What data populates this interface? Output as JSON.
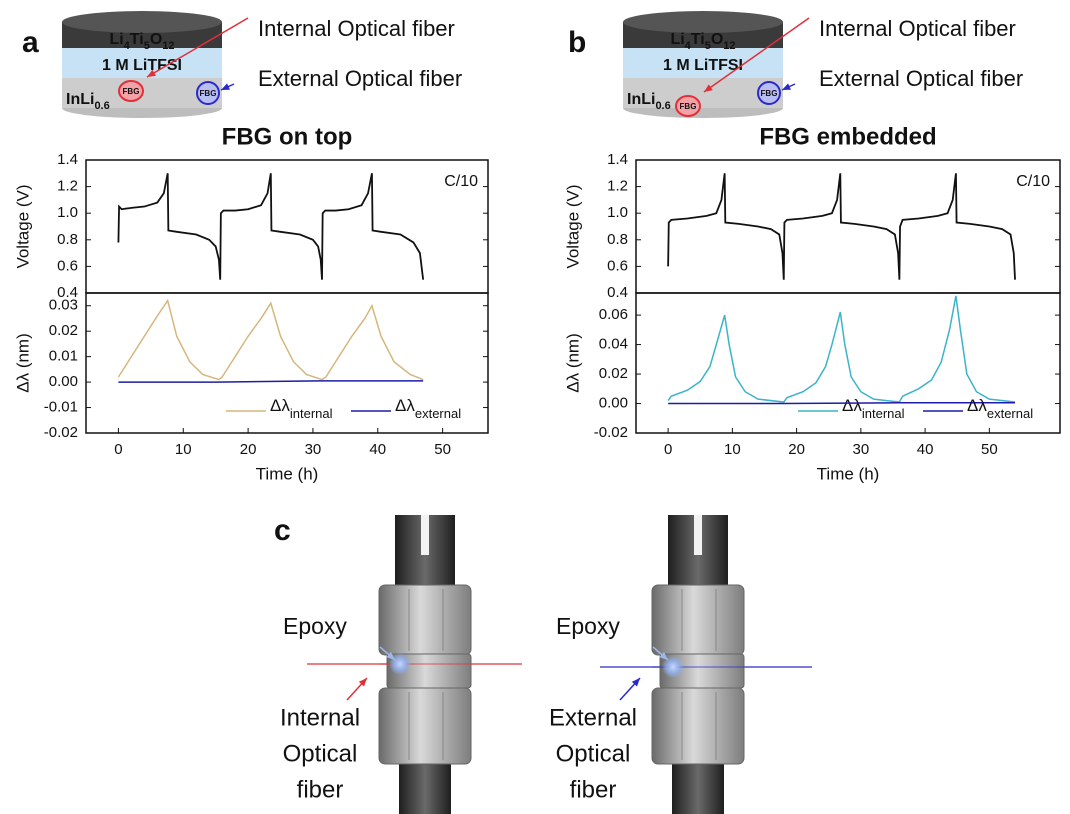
{
  "panel_labels": [
    "a",
    "b",
    "c"
  ],
  "schematics": [
    {
      "top_layer": [
        "Li",
        "4",
        "Ti",
        "5",
        "O",
        "12"
      ],
      "middle_layer": "1 M LiTFSI",
      "bottom_layer": [
        "InLi",
        "0.6"
      ],
      "internal_fbg": "FBG",
      "external_fbg": "FBG",
      "internal_label": "Internal Optical fiber",
      "external_label": "External Optical fiber"
    },
    {
      "top_layer": [
        "Li",
        "4",
        "Ti",
        "5",
        "O",
        "12"
      ],
      "middle_layer": "1 M LiTFSI",
      "bottom_layer": [
        "InLi",
        "0.6"
      ],
      "internal_fbg": "FBG",
      "external_fbg": "FBG",
      "internal_label": "Internal Optical fiber",
      "external_label": "External Optical fiber"
    }
  ],
  "panel_c": [
    {
      "epoxy": "Epoxy",
      "fiber_label": [
        "Internal",
        "Optical",
        "fiber"
      ],
      "fiber_color": "#e0303a"
    },
    {
      "epoxy": "Epoxy",
      "fiber_label": [
        "External",
        "Optical",
        "fiber"
      ],
      "fiber_color": "#2a2acc"
    }
  ],
  "chart_data": [
    {
      "type": "line",
      "title": "FBG on top",
      "title_color": "#b8972e",
      "ylabel": "Voltage (V)",
      "annotation": "C/10",
      "xlim": [
        -5,
        57
      ],
      "ylim": [
        0.4,
        1.4
      ],
      "yticks": [
        0.4,
        0.6,
        0.8,
        {
          "value": 1,
          "label": "1.0"
        },
        1.2,
        1.4
      ],
      "series": [
        {
          "color": "#111111",
          "x": [
            0,
            0.1,
            0.5,
            2,
            4,
            6,
            7,
            7.6,
            7.7,
            9,
            12,
            14,
            15,
            15.5,
            15.7,
            15.8,
            16.2,
            18,
            20,
            22,
            23,
            23.5,
            23.6,
            25,
            28,
            30,
            30.8,
            31.2,
            31.4,
            31.5,
            31.9,
            33.5,
            35.5,
            37.5,
            38.5,
            39.1,
            39.2,
            40.5,
            43.5,
            45.5,
            46.5,
            47
          ],
          "values": [
            0.78,
            1.05,
            1.03,
            1.04,
            1.05,
            1.08,
            1.15,
            1.3,
            0.87,
            0.86,
            0.84,
            0.8,
            0.75,
            0.65,
            0.5,
            1.0,
            1.02,
            1.02,
            1.03,
            1.06,
            1.15,
            1.3,
            0.87,
            0.86,
            0.84,
            0.8,
            0.75,
            0.65,
            0.5,
            1.0,
            1.02,
            1.02,
            1.03,
            1.06,
            1.15,
            1.3,
            0.87,
            0.86,
            0.84,
            0.78,
            0.7,
            0.5
          ]
        }
      ]
    },
    {
      "type": "line",
      "ylabel": "Δλ (nm)",
      "xlabel": "Time (h)",
      "xlim": [
        -5,
        57
      ],
      "ylim": [
        -0.02,
        0.035
      ],
      "xticks": [
        0,
        10,
        20,
        30,
        40,
        50
      ],
      "yticks": [
        -0.02,
        -0.01,
        {
          "value": 0,
          "label": "0.00"
        },
        0.01,
        0.02,
        0.03
      ],
      "series": [
        {
          "name": "Δλ",
          "subscript": "internal",
          "color": "#d4b77a",
          "x": [
            0,
            2,
            4,
            6,
            7.6,
            9,
            11,
            13,
            15.5,
            16,
            18,
            20,
            22,
            23.5,
            25,
            27,
            29,
            31.4,
            32,
            34,
            36,
            38,
            39.1,
            40.5,
            42.5,
            45,
            47
          ],
          "values": [
            0.002,
            0.01,
            0.018,
            0.026,
            0.032,
            0.018,
            0.008,
            0.003,
            0.001,
            0.002,
            0.01,
            0.018,
            0.025,
            0.031,
            0.018,
            0.008,
            0.003,
            0.001,
            0.002,
            0.01,
            0.018,
            0.025,
            0.03,
            0.018,
            0.008,
            0.003,
            0.001
          ]
        },
        {
          "name": "Δλ",
          "subscript": "external",
          "color": "#1c1ca8",
          "x": [
            0,
            15,
            31,
            47
          ],
          "values": [
            0,
            0,
            0.0005,
            0.0005
          ]
        }
      ]
    },
    {
      "type": "line",
      "title": "FBG embedded",
      "title_color": "#3bb3c9",
      "ylabel": "Voltage (V)",
      "annotation": "C/10",
      "xlim": [
        -5,
        61
      ],
      "ylim": [
        0.4,
        1.4
      ],
      "yticks": [
        0.4,
        0.6,
        0.8,
        {
          "value": 1,
          "label": "1.0"
        },
        1.2,
        1.4
      ],
      "series": [
        {
          "color": "#111111",
          "x": [
            0,
            0.1,
            0.5,
            3,
            6,
            7.5,
            8.3,
            8.8,
            8.9,
            11,
            14,
            16,
            17.3,
            17.8,
            18,
            18.1,
            18.5,
            21,
            24,
            25.5,
            26.3,
            26.8,
            26.9,
            29,
            32,
            34,
            35.3,
            35.8,
            36,
            36.1,
            36.5,
            39,
            42,
            43.5,
            44.3,
            44.8,
            44.9,
            47,
            50,
            52,
            53.3,
            53.8,
            54
          ],
          "values": [
            0.6,
            0.93,
            0.95,
            0.96,
            0.98,
            1.0,
            1.1,
            1.3,
            0.93,
            0.92,
            0.9,
            0.88,
            0.84,
            0.7,
            0.5,
            0.93,
            0.95,
            0.96,
            0.98,
            1.0,
            1.1,
            1.3,
            0.93,
            0.92,
            0.9,
            0.88,
            0.84,
            0.7,
            0.5,
            0.9,
            0.95,
            0.96,
            0.98,
            1.0,
            1.1,
            1.3,
            0.93,
            0.92,
            0.9,
            0.88,
            0.84,
            0.7,
            0.5
          ]
        }
      ]
    },
    {
      "type": "line",
      "ylabel": "Δλ (nm)",
      "xlabel": "Time (h)",
      "xlim": [
        -5,
        61
      ],
      "ylim": [
        -0.02,
        0.075
      ],
      "xticks": [
        0,
        10,
        20,
        30,
        40,
        50
      ],
      "yticks": [
        -0.02,
        {
          "value": 0,
          "label": "0.00"
        },
        0.02,
        0.04,
        0.06
      ],
      "series": [
        {
          "name": "Δλ",
          "subscript": "internal",
          "color": "#3bb3c9",
          "x": [
            0,
            0.5,
            3,
            5,
            6.5,
            7.5,
            8.8,
            9.5,
            10.5,
            12,
            14,
            18,
            18.5,
            21,
            23,
            24.5,
            25.5,
            26.8,
            27.5,
            28.5,
            30,
            32,
            36,
            36.5,
            39,
            41,
            42.5,
            43.8,
            44.8,
            45.5,
            46.5,
            48,
            50,
            54
          ],
          "values": [
            0.002,
            0.005,
            0.009,
            0.015,
            0.025,
            0.04,
            0.06,
            0.04,
            0.018,
            0.008,
            0.003,
            0.001,
            0.004,
            0.008,
            0.014,
            0.025,
            0.04,
            0.062,
            0.04,
            0.018,
            0.008,
            0.003,
            0.001,
            0.005,
            0.01,
            0.016,
            0.028,
            0.05,
            0.073,
            0.05,
            0.02,
            0.008,
            0.003,
            0.001
          ]
        },
        {
          "name": "Δλ",
          "subscript": "external",
          "color": "#1c1ca8",
          "x": [
            0,
            18,
            36,
            54
          ],
          "values": [
            0,
            0,
            0.0005,
            0.0005
          ]
        }
      ]
    }
  ]
}
